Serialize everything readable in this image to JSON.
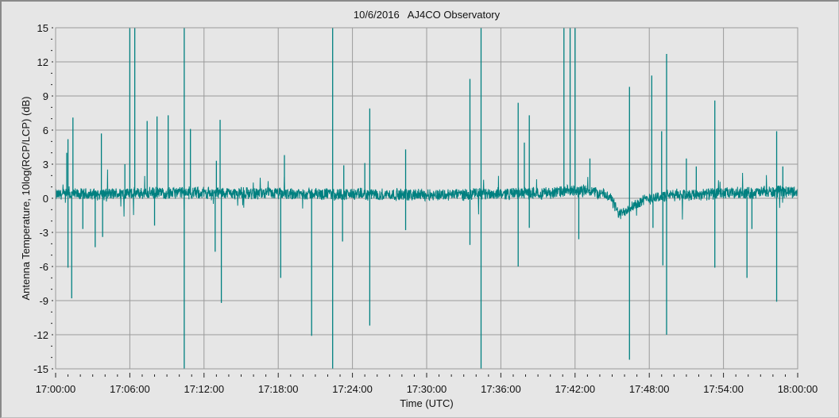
{
  "chart_data": {
    "type": "line",
    "title": "10/6/2016   AJ4CO Observatory",
    "xlabel": "Time (UTC)",
    "ylabel": "Antenna Temperature, 10log(RCP/LCP) (dB)",
    "xlim_minutes": [
      0,
      60
    ],
    "ylim": [
      -15,
      15
    ],
    "x_ticks": [
      "17:00:00",
      "17:06:00",
      "17:12:00",
      "17:18:00",
      "17:24:00",
      "17:30:00",
      "17:36:00",
      "17:42:00",
      "17:48:00",
      "17:54:00",
      "18:00:00"
    ],
    "y_ticks": [
      15,
      12,
      9,
      6,
      3,
      0,
      -3,
      -6,
      -9,
      -12,
      -15
    ],
    "grid": true,
    "line_color": "#008080",
    "series": [
      {
        "name": "10log(RCP/LCP)",
        "baseline_minutes_db": [
          [
            0,
            0.3
          ],
          [
            10,
            0.5
          ],
          [
            20,
            0.4
          ],
          [
            30,
            0.3
          ],
          [
            40,
            0.5
          ],
          [
            43,
            0.7
          ],
          [
            44.8,
            0.2
          ],
          [
            45.6,
            -1.5
          ],
          [
            46.5,
            -0.7
          ],
          [
            48,
            0.0
          ],
          [
            50,
            0.3
          ],
          [
            60,
            0.6
          ]
        ],
        "noise_amplitude_db": 0.6,
        "spikes_minutes_db": [
          [
            0.9,
            4
          ],
          [
            1.0,
            5.2
          ],
          [
            1.4,
            7.1
          ],
          [
            3.7,
            5.7
          ],
          [
            5.6,
            3.0
          ],
          [
            6.0,
            15
          ],
          [
            6.4,
            15
          ],
          [
            7.4,
            6.8
          ],
          [
            8.2,
            7.2
          ],
          [
            9.1,
            7.3
          ],
          [
            10.4,
            15
          ],
          [
            10.9,
            6.1
          ],
          [
            13.0,
            3.3
          ],
          [
            13.3,
            6.9
          ],
          [
            18.5,
            3.8
          ],
          [
            22.4,
            15
          ],
          [
            23.3,
            2.9
          ],
          [
            25.0,
            3.1
          ],
          [
            25.4,
            7.9
          ],
          [
            28.3,
            4.3
          ],
          [
            33.5,
            10.5
          ],
          [
            34.4,
            15
          ],
          [
            37.4,
            8.4
          ],
          [
            37.9,
            4.9
          ],
          [
            38.3,
            7.3
          ],
          [
            41.1,
            15
          ],
          [
            41.6,
            15
          ],
          [
            42.0,
            15
          ],
          [
            43.2,
            3.5
          ],
          [
            46.4,
            9.8
          ],
          [
            48.2,
            10.8
          ],
          [
            49.0,
            5.9
          ],
          [
            49.4,
            12.7
          ],
          [
            51.0,
            3.5
          ],
          [
            51.8,
            2.8
          ],
          [
            53.3,
            8.6
          ],
          [
            58.3,
            5.9
          ],
          [
            58.8,
            2.8
          ],
          [
            1.0,
            -6.1
          ],
          [
            1.3,
            -8.8
          ],
          [
            2.2,
            -2.7
          ],
          [
            3.2,
            -4.3
          ],
          [
            3.8,
            -3.4
          ],
          [
            8.0,
            -2.4
          ],
          [
            10.4,
            -15
          ],
          [
            12.9,
            -4.7
          ],
          [
            13.4,
            -9.2
          ],
          [
            18.2,
            -7.0
          ],
          [
            20.7,
            -12.1
          ],
          [
            22.4,
            -15
          ],
          [
            23.2,
            -3.8
          ],
          [
            25.4,
            -11.2
          ],
          [
            28.3,
            -2.8
          ],
          [
            33.5,
            -4.1
          ],
          [
            34.4,
            -15
          ],
          [
            37.4,
            -6.0
          ],
          [
            38.3,
            -2.6
          ],
          [
            42.3,
            -3.6
          ],
          [
            46.4,
            -14.2
          ],
          [
            48.3,
            -2.6
          ],
          [
            49.1,
            -5.9
          ],
          [
            49.4,
            -12.0
          ],
          [
            53.3,
            -6.1
          ],
          [
            55.9,
            -7.0
          ],
          [
            56.3,
            -2.7
          ],
          [
            58.3,
            -9.1
          ]
        ]
      }
    ]
  }
}
